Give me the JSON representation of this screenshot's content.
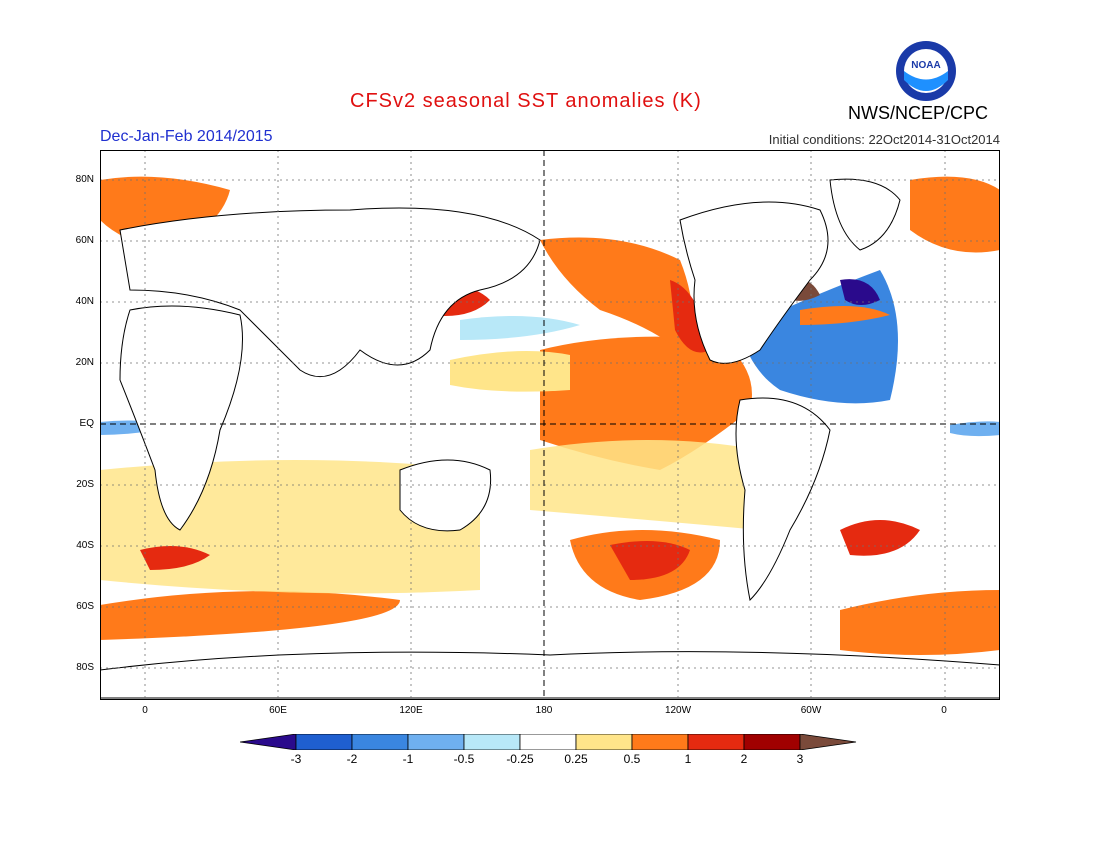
{
  "header": {
    "title": "CFSv2 seasonal SST anomalies (K)",
    "season": "Dec-Jan-Feb 2014/2015",
    "initial_conditions": "Initial conditions: 22Oct2014-31Oct2014",
    "agency": "NWS/NCEP/CPC",
    "logo_text": "NOAA"
  },
  "axes": {
    "lat_labels": [
      "80N",
      "60N",
      "40N",
      "20N",
      "EQ",
      "20S",
      "40S",
      "60S",
      "80S"
    ],
    "lon_labels": [
      "0",
      "60E",
      "120E",
      "180",
      "120W",
      "60W",
      "0"
    ]
  },
  "colorbar": {
    "labels": [
      "-3",
      "-2",
      "-1",
      "-0.5",
      "-0.25",
      "0.25",
      "0.5",
      "1",
      "2",
      "3"
    ],
    "colors": [
      "#2a0a8c",
      "#1f5fd0",
      "#3a86e0",
      "#6fb0f0",
      "#b8e8f8",
      "#ffffff",
      "#ffe58a",
      "#ff7a1a",
      "#e52a10",
      "#a00000",
      "#7a4a3a"
    ]
  },
  "legend_colors": {
    "land": "#ffffff",
    "warm": "#ff7a1a",
    "cool": "#3a86e0"
  }
}
